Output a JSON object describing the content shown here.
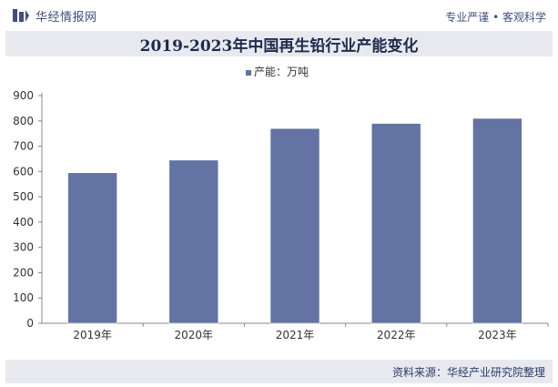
{
  "header": {
    "brand_name": "华经情报网",
    "slogan": "专业严谨 • 客观科学"
  },
  "title": "2019-2023年中国再生铅行业产能变化",
  "footer": {
    "source": "资料来源：华经产业研究院整理"
  },
  "colors": {
    "bar": "#6373a3",
    "header_text": "#3f4f7e",
    "band": "#e7e9ef"
  },
  "chart_data": {
    "type": "bar",
    "categories": [
      "2019年",
      "2020年",
      "2021年",
      "2022年",
      "2023年"
    ],
    "series": [
      {
        "name": "产能：万吨",
        "values": [
          595,
          645,
          770,
          790,
          810
        ]
      }
    ],
    "ylim": [
      0,
      900
    ],
    "yticks": [
      0,
      100,
      200,
      300,
      400,
      500,
      600,
      700,
      800,
      900
    ],
    "grid": false,
    "legend": "top-center"
  }
}
